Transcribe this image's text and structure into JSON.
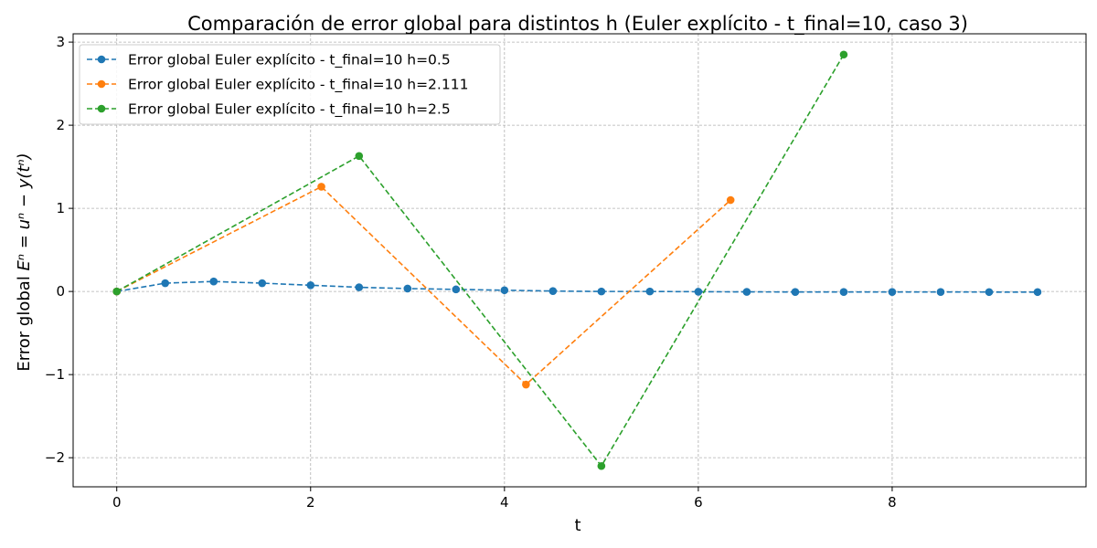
{
  "chart_data": {
    "type": "line",
    "title": "Comparación de error global para distintos h (Euler explícito - t_final=10, caso 3)",
    "xlabel": "t",
    "ylabel_prefix": "Error global ",
    "ylabel_math": "Eⁿ = uⁿ − y(tⁿ)",
    "xlim": [
      -0.45,
      10.0
    ],
    "ylim": [
      -2.35,
      3.1
    ],
    "xticks": [
      0,
      2,
      4,
      6,
      8
    ],
    "xtick_labels": [
      "0",
      "2",
      "4",
      "6",
      "8"
    ],
    "yticks": [
      -2,
      -1,
      0,
      1,
      2,
      3
    ],
    "ytick_labels": [
      "−2",
      "−1",
      "0",
      "1",
      "2",
      "3"
    ],
    "grid": true,
    "legend_position": "top-left",
    "series": [
      {
        "name": "Error global Euler explícito - t_final=10 h=0.5",
        "color": "#1f77b4",
        "x": [
          0,
          0.5,
          1.0,
          1.5,
          2.0,
          2.5,
          3.0,
          3.5,
          4.0,
          4.5,
          5.0,
          5.5,
          6.0,
          6.5,
          7.0,
          7.5,
          8.0,
          8.5,
          9.0,
          9.5
        ],
        "y": [
          0,
          0.1,
          0.12,
          0.1,
          0.075,
          0.05,
          0.035,
          0.025,
          0.015,
          0.005,
          0.0,
          0.0,
          -0.003,
          -0.005,
          -0.006,
          -0.006,
          -0.006,
          -0.006,
          -0.007,
          -0.007
        ]
      },
      {
        "name": "Error global Euler explícito - t_final=10 h=2.111",
        "color": "#ff7f0e",
        "x": [
          0,
          2.111,
          4.222,
          6.333
        ],
        "y": [
          0,
          1.26,
          -1.12,
          1.1
        ]
      },
      {
        "name": "Error global Euler explícito - t_final=10 h=2.5",
        "color": "#2ca02c",
        "x": [
          0,
          2.5,
          5.0,
          7.5
        ],
        "y": [
          0,
          1.63,
          -2.1,
          2.85
        ]
      }
    ]
  }
}
